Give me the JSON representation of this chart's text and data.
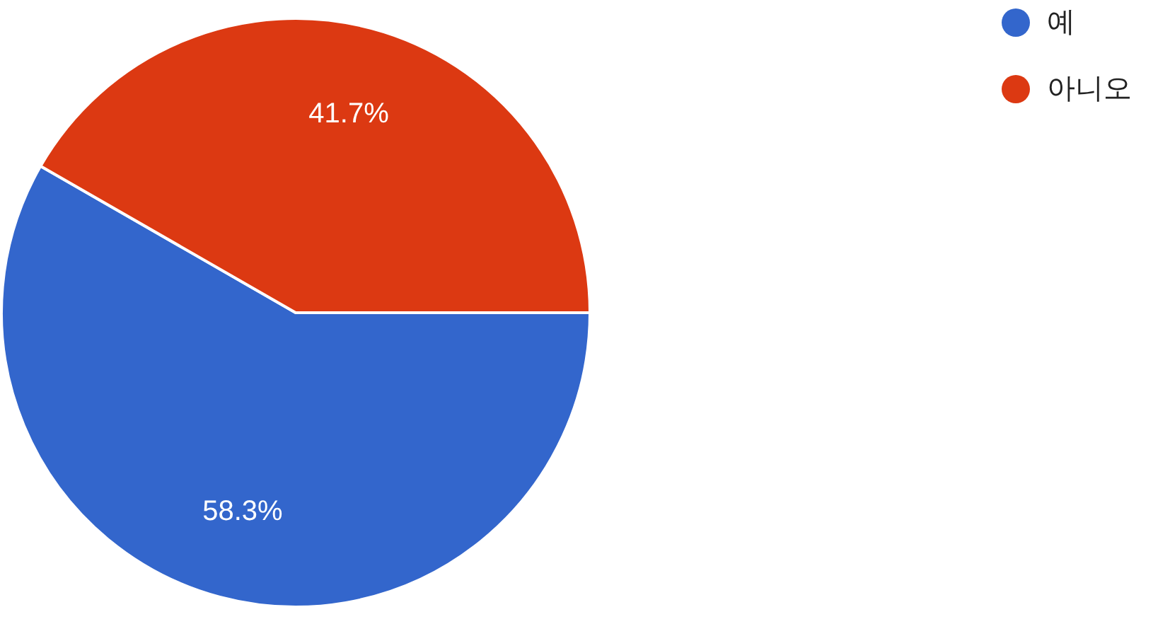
{
  "chart_data": {
    "type": "pie",
    "categories": [
      "예",
      "아니오"
    ],
    "values": [
      58.3,
      41.7
    ],
    "colors": [
      "#3366cc",
      "#dc3912"
    ],
    "value_labels": [
      "58.3%",
      "41.7%"
    ],
    "legend": "top right"
  }
}
